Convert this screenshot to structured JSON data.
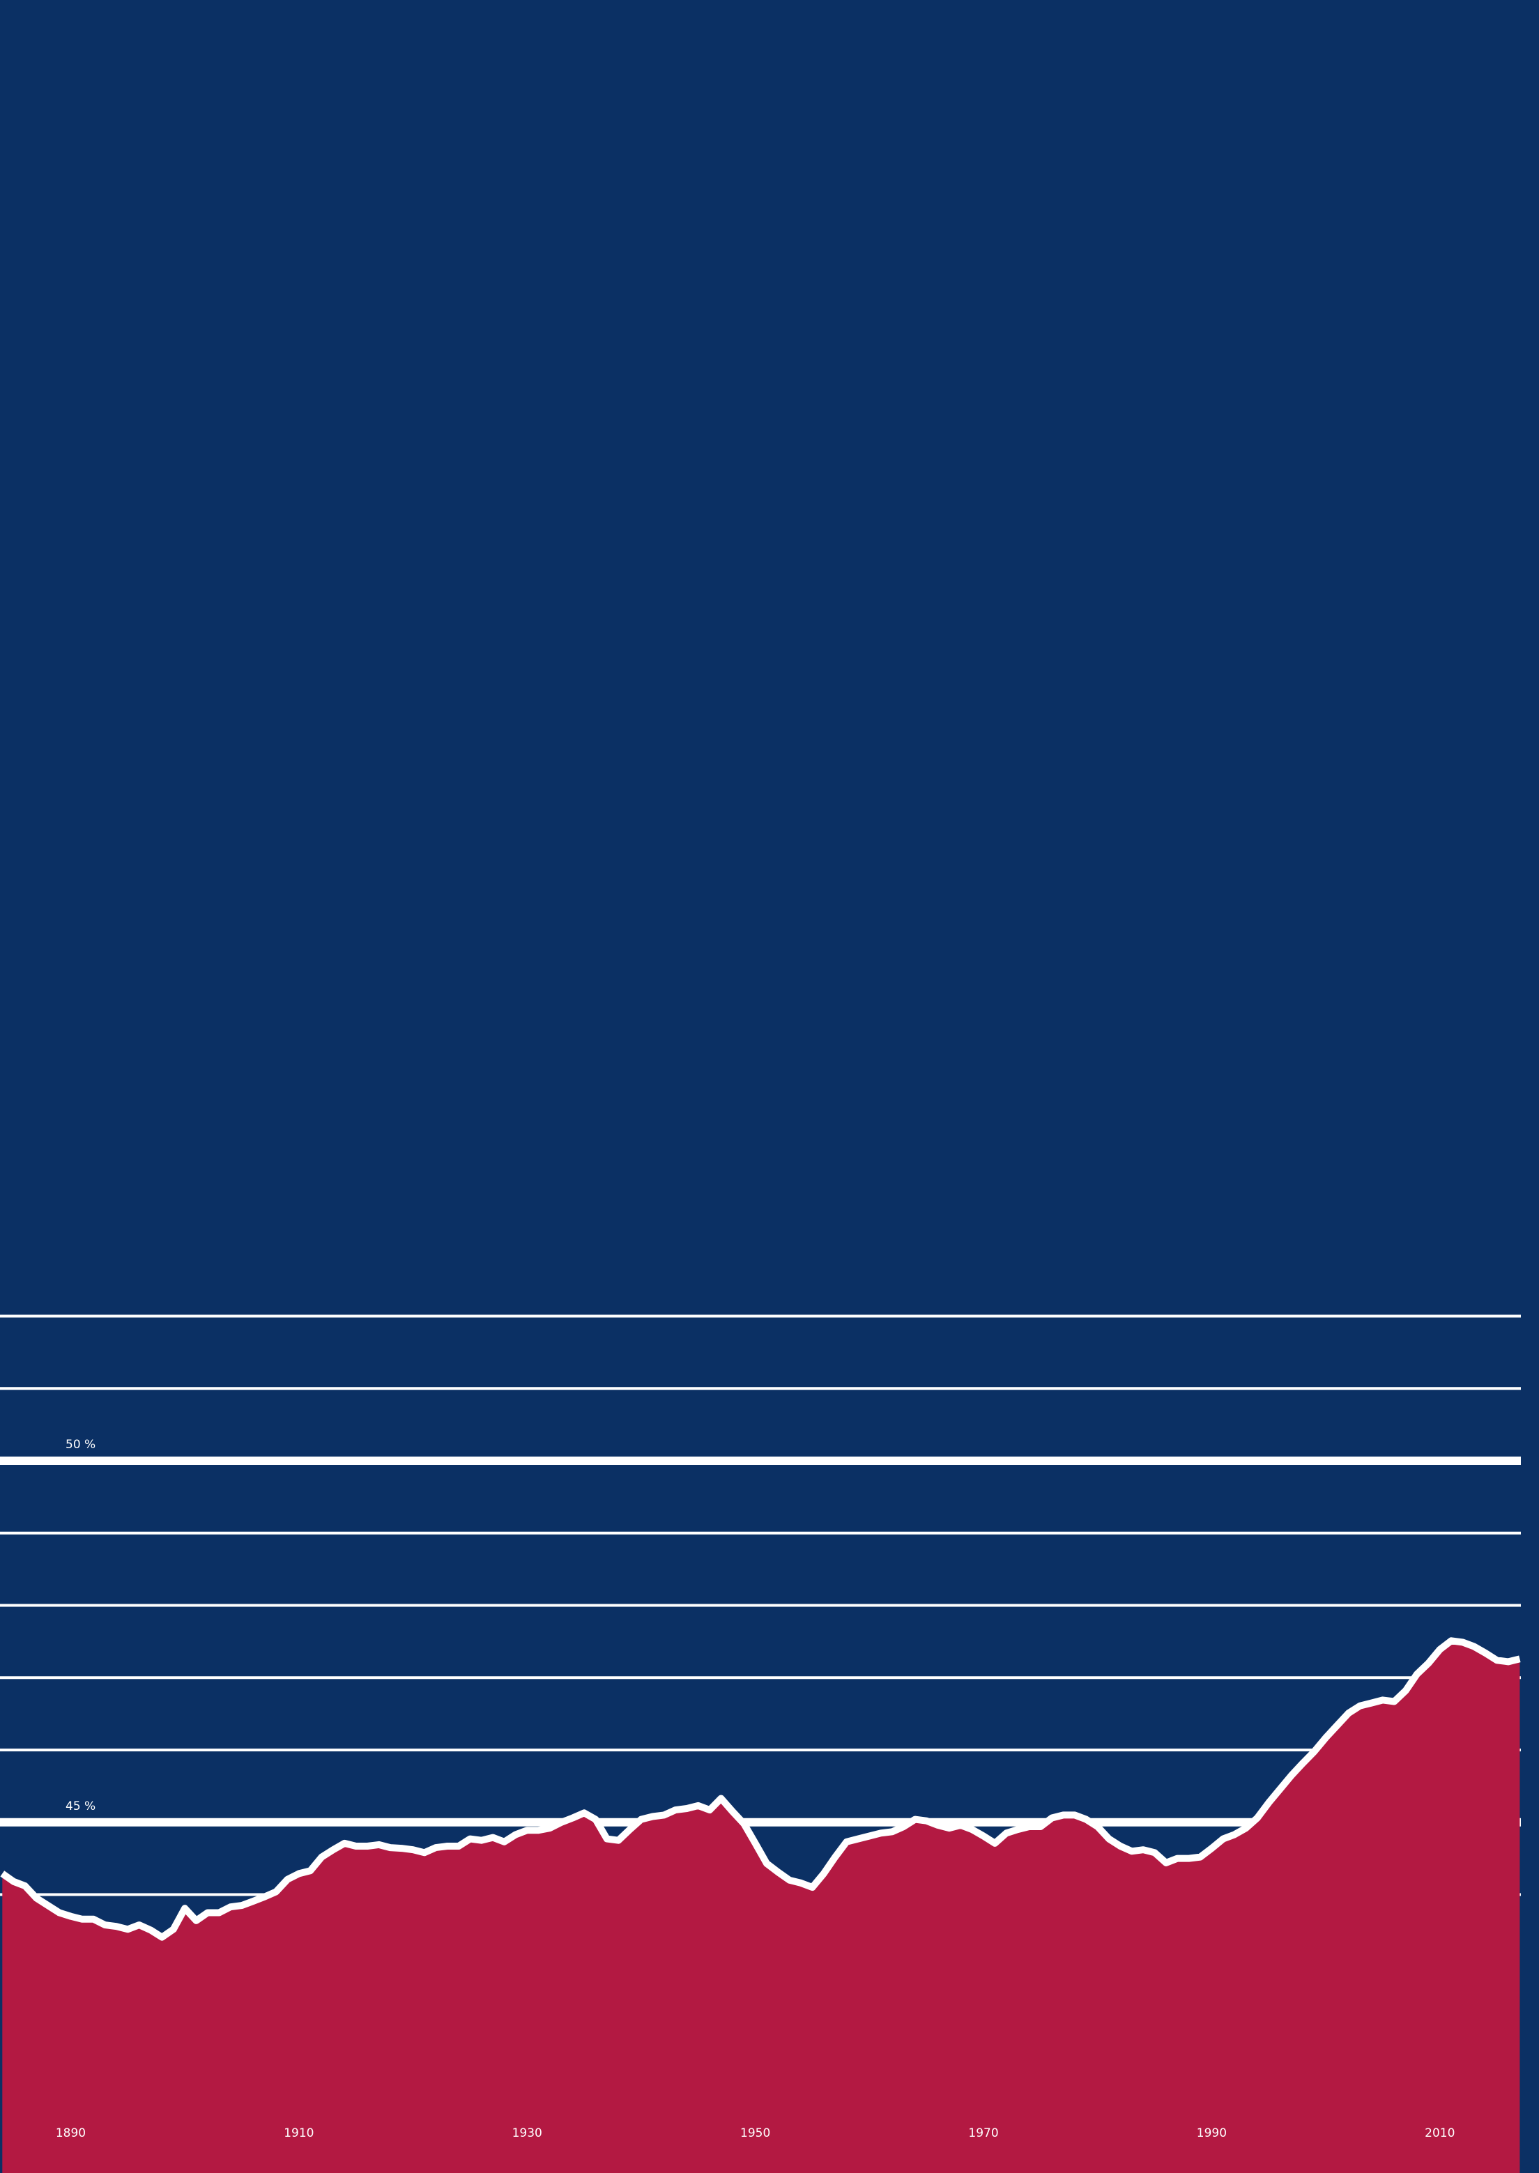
{
  "chart_data": {
    "type": "area",
    "x": [
      1884,
      1885,
      1886,
      1887,
      1888,
      1889,
      1890,
      1891,
      1892,
      1893,
      1894,
      1895,
      1896,
      1897,
      1898,
      1899,
      1900,
      1901,
      1902,
      1903,
      1904,
      1905,
      1906,
      1907,
      1908,
      1909,
      1910,
      1911,
      1912,
      1913,
      1914,
      1915,
      1916,
      1917,
      1918,
      1919,
      1920,
      1921,
      1922,
      1923,
      1924,
      1925,
      1926,
      1927,
      1928,
      1929,
      1930,
      1931,
      1932,
      1933,
      1934,
      1935,
      1936,
      1937,
      1938,
      1939,
      1940,
      1941,
      1942,
      1943,
      1944,
      1945,
      1946,
      1947,
      1948,
      1949,
      1950,
      1951,
      1952,
      1953,
      1954,
      1955,
      1956,
      1957,
      1958,
      1959,
      1960,
      1961,
      1962,
      1963,
      1964,
      1965,
      1966,
      1967,
      1968,
      1969,
      1970,
      1971,
      1972,
      1973,
      1974,
      1975,
      1976,
      1977,
      1978,
      1979,
      1980,
      1981,
      1982,
      1983,
      1984,
      1985,
      1986,
      1987,
      1988,
      1989,
      1990,
      1991,
      1992,
      1993,
      1994,
      1995,
      1996,
      1997,
      1998,
      1999,
      2000,
      2001,
      2002,
      2003,
      2004,
      2005,
      2006,
      2007,
      2008,
      2009,
      2010,
      2011,
      2012,
      2013,
      2014,
      2015,
      2016,
      2017
    ],
    "values": [
      44.29,
      44.18,
      44.12,
      43.95,
      43.85,
      43.75,
      43.7,
      43.66,
      43.66,
      43.58,
      43.56,
      43.52,
      43.58,
      43.51,
      43.41,
      43.52,
      43.81,
      43.64,
      43.75,
      43.75,
      43.83,
      43.85,
      43.91,
      43.97,
      44.04,
      44.21,
      44.29,
      44.33,
      44.52,
      44.62,
      44.71,
      44.67,
      44.67,
      44.69,
      44.65,
      44.64,
      44.62,
      44.58,
      44.65,
      44.67,
      44.67,
      44.77,
      44.75,
      44.79,
      44.73,
      44.83,
      44.89,
      44.89,
      44.92,
      45.0,
      45.06,
      45.13,
      45.04,
      44.77,
      44.75,
      44.9,
      45.04,
      45.08,
      45.1,
      45.17,
      45.19,
      45.23,
      45.17,
      45.33,
      45.15,
      44.98,
      44.71,
      44.43,
      44.31,
      44.2,
      44.16,
      44.1,
      44.29,
      44.52,
      44.73,
      44.77,
      44.81,
      44.85,
      44.87,
      44.94,
      45.04,
      45.02,
      44.96,
      44.92,
      44.96,
      44.9,
      44.81,
      44.71,
      44.85,
      44.9,
      44.94,
      44.94,
      45.06,
      45.1,
      45.1,
      45.04,
      44.94,
      44.77,
      44.67,
      44.6,
      44.62,
      44.58,
      44.44,
      44.5,
      44.5,
      44.52,
      44.64,
      44.77,
      44.83,
      44.92,
      45.06,
      45.27,
      45.46,
      45.65,
      45.82,
      45.98,
      46.17,
      46.34,
      46.51,
      46.61,
      46.65,
      46.69,
      46.67,
      46.82,
      47.05,
      47.2,
      47.39,
      47.51,
      47.49,
      47.43,
      47.34,
      47.24,
      47.22,
      47.26
    ],
    "color": "#b31942",
    "line_color": "#ffffff",
    "background": "#0b3064",
    "xlim": [
      1883.8,
      2017.1
    ],
    "xticks": [
      1890,
      1910,
      1930,
      1950,
      1970,
      1990,
      2010
    ],
    "ylim": [
      40.15,
      70.2
    ],
    "yticks": [
      {
        "value": 45,
        "label": "45 %"
      },
      {
        "value": 50,
        "label": "50 %"
      }
    ],
    "minor_yticks": [
      44,
      46,
      47,
      48,
      49,
      51,
      52
    ],
    "grid": true
  }
}
